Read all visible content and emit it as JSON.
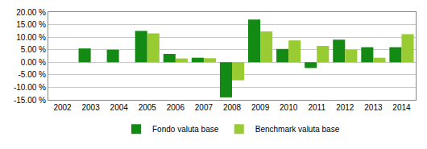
{
  "chart_data": {
    "type": "bar",
    "categories": [
      "2002",
      "2003",
      "2004",
      "2005",
      "2006",
      "2007",
      "2008",
      "2009",
      "2010",
      "2011",
      "2012",
      "2013",
      "2014"
    ],
    "series": [
      {
        "name": "Fondo valuta base",
        "color": "#138a13",
        "values": [
          null,
          5.5,
          5.0,
          12.5,
          3.3,
          1.8,
          -14.0,
          17.0,
          5.3,
          -2.3,
          9.0,
          6.0,
          6.0
        ]
      },
      {
        "name": "Benchmark valuta base",
        "color": "#99cc33",
        "values": [
          null,
          null,
          null,
          11.5,
          1.5,
          1.6,
          -7.2,
          12.3,
          8.7,
          6.5,
          5.0,
          1.8,
          11.2
        ]
      }
    ],
    "ylim": [
      -15,
      20
    ],
    "yticks": [
      {
        "value": -15,
        "label": "-15.00 %"
      },
      {
        "value": -10,
        "label": "-10.00 %"
      },
      {
        "value": -5,
        "label": "-5.00 %"
      },
      {
        "value": 0,
        "label": "0.00 %"
      },
      {
        "value": 5,
        "label": "5.00 %"
      },
      {
        "value": 10,
        "label": "10.00 %"
      },
      {
        "value": 15,
        "label": "15.00 %"
      },
      {
        "value": 20,
        "label": "20.00 %"
      }
    ],
    "grid": true,
    "legend": "bottom"
  }
}
